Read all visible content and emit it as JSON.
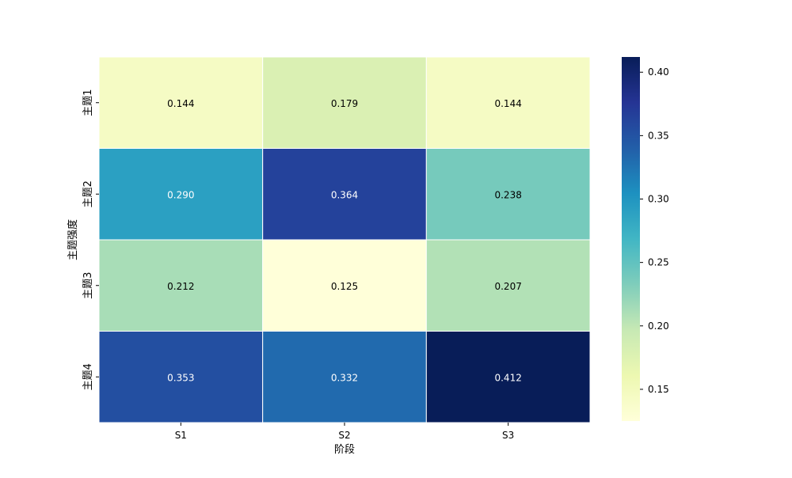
{
  "chart_data": {
    "type": "heatmap",
    "title": "",
    "xlabel": "阶段",
    "ylabel": "主题强度",
    "x_categories": [
      "S1",
      "S2",
      "S3"
    ],
    "y_categories": [
      "主题1",
      "主题2",
      "主题3",
      "主题4"
    ],
    "values": [
      [
        0.144,
        0.179,
        0.144
      ],
      [
        0.29,
        0.364,
        0.238
      ],
      [
        0.212,
        0.125,
        0.207
      ],
      [
        0.353,
        0.332,
        0.412
      ]
    ],
    "value_labels": [
      [
        "0.144",
        "0.179",
        "0.144"
      ],
      [
        "0.290",
        "0.364",
        "0.238"
      ],
      [
        "0.212",
        "0.125",
        "0.207"
      ],
      [
        "0.353",
        "0.332",
        "0.412"
      ]
    ],
    "colormap": "YlGnBu",
    "colorbar": {
      "range": [
        0.125,
        0.412
      ],
      "ticks": [
        0.15,
        0.2,
        0.25,
        0.3,
        0.35,
        0.4
      ],
      "tick_labels": [
        "0.15",
        "0.20",
        "0.25",
        "0.30",
        "0.35",
        "0.40"
      ]
    },
    "grid": false,
    "cell_separator_color": "#ffffff"
  }
}
